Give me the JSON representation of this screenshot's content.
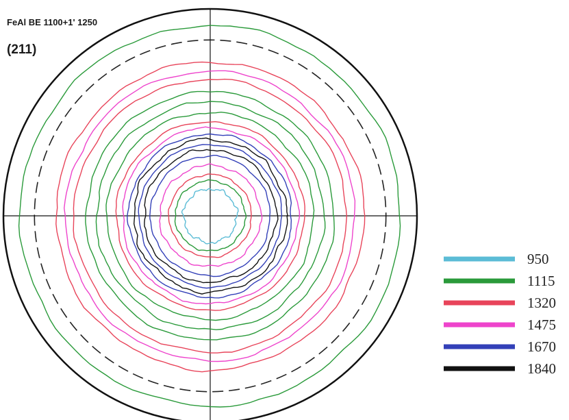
{
  "chart_data": {
    "type": "contour",
    "title": "FeAl BE 1100+1' 1250",
    "subtitle": "(211)",
    "levels": [
      {
        "value": 950,
        "label": "950",
        "color": "#5bbcd6"
      },
      {
        "value": 1115,
        "label": "1115",
        "color": "#2a9a3a"
      },
      {
        "value": 1320,
        "label": "1320",
        "color": "#e8445a"
      },
      {
        "value": 1475,
        "label": "1475",
        "color": "#ee44cc"
      },
      {
        "value": 1670,
        "label": "1670",
        "color": "#3340b8"
      },
      {
        "value": 1840,
        "label": "1840",
        "color": "#111111"
      }
    ],
    "contours": [
      {
        "level": 950,
        "r": 0.13,
        "wobble": 0.25
      },
      {
        "level": 1115,
        "r": 0.17,
        "wobble": 0.1
      },
      {
        "level": 1320,
        "r": 0.2,
        "wobble": 0.08
      },
      {
        "level": 1475,
        "r": 0.245,
        "wobble": 0.1
      },
      {
        "level": 1670,
        "r": 0.29,
        "wobble": 0.06
      },
      {
        "level": 1840,
        "r": 0.32,
        "wobble": 0.09
      },
      {
        "level": 1670,
        "r": 0.345,
        "wobble": 0.05
      },
      {
        "level": 1840,
        "r": 0.37,
        "wobble": 0.1
      },
      {
        "level": 1670,
        "r": 0.395,
        "wobble": 0.06
      },
      {
        "level": 1475,
        "r": 0.425,
        "wobble": 0.06
      },
      {
        "level": 1320,
        "r": 0.455,
        "wobble": 0.05
      },
      {
        "level": 1115,
        "r": 0.5,
        "wobble": 0.05
      },
      {
        "level": 1115,
        "r": 0.55,
        "wobble": 0.05
      },
      {
        "level": 1115,
        "r": 0.6,
        "wobble": 0.04
      },
      {
        "level": 1320,
        "r": 0.66,
        "wobble": 0.04
      },
      {
        "level": 1475,
        "r": 0.7,
        "wobble": 0.04
      },
      {
        "level": 1320,
        "r": 0.745,
        "wobble": 0.04
      },
      {
        "level": 1115,
        "r": 0.92,
        "wobble": 0.03
      }
    ],
    "reference_circle_r": 0.85,
    "grid": "crosshair"
  }
}
